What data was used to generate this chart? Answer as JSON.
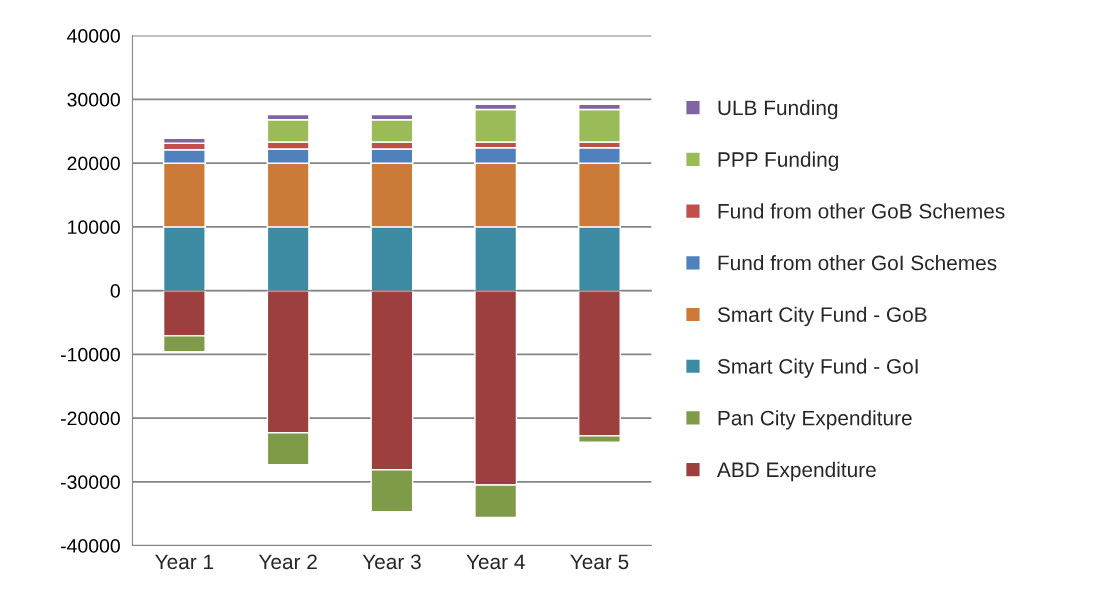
{
  "chart_data": {
    "type": "bar",
    "stacked": true,
    "categories": [
      "Year 1",
      "Year 2",
      "Year 3",
      "Year 4",
      "Year 5"
    ],
    "series": [
      {
        "name": "ABD Expenditure",
        "color": "#9c3f3e",
        "values": [
          -7100,
          -22300,
          -28100,
          -30500,
          -22800
        ]
      },
      {
        "name": "Pan City Expenditure",
        "color": "#7f9b48",
        "values": [
          -2500,
          -5000,
          -6600,
          -5100,
          -1000
        ]
      },
      {
        "name": "Smart City Fund - GoI",
        "color": "#3c8ba3",
        "values": [
          10000,
          10000,
          10000,
          10000,
          10000
        ]
      },
      {
        "name": "Smart City Fund - GoB",
        "color": "#cc7a37",
        "values": [
          10000,
          10000,
          10000,
          10000,
          10000
        ]
      },
      {
        "name": "Fund from other GoI Schemes",
        "color": "#4f81bd",
        "values": [
          2100,
          2200,
          2200,
          2400,
          2400
        ]
      },
      {
        "name": "Fund from other GoB Schemes",
        "color": "#c0504d",
        "values": [
          1000,
          1100,
          1100,
          900,
          900
        ]
      },
      {
        "name": "PPP Funding",
        "color": "#9bbb59",
        "values": [
          0,
          3500,
          3500,
          5100,
          5100
        ]
      },
      {
        "name": "ULB Funding",
        "color": "#8064a2",
        "values": [
          800,
          800,
          800,
          800,
          800
        ]
      }
    ],
    "ylim": [
      -40000,
      40000
    ],
    "yticks": [
      -40000,
      -30000,
      -20000,
      -10000,
      0,
      10000,
      20000,
      30000,
      40000
    ],
    "grid": "y",
    "legend": "right"
  }
}
